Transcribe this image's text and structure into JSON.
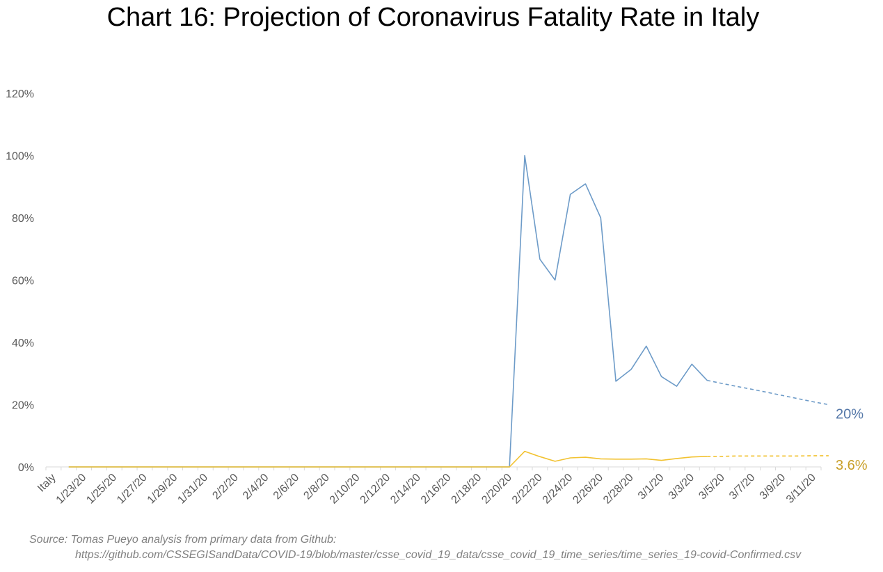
{
  "chart_data": {
    "type": "line",
    "title": "Chart 16: Projection of Coronavirus Fatality Rate in Italy",
    "x_start_label": "Italy",
    "x": [
      "Italy",
      "1/22/20",
      "1/23/20",
      "1/24/20",
      "1/25/20",
      "1/26/20",
      "1/27/20",
      "1/28/20",
      "1/29/20",
      "1/30/20",
      "1/31/20",
      "2/1/20",
      "2/2/20",
      "2/3/20",
      "2/4/20",
      "2/5/20",
      "2/6/20",
      "2/7/20",
      "2/8/20",
      "2/9/20",
      "2/10/20",
      "2/11/20",
      "2/12/20",
      "2/13/20",
      "2/14/20",
      "2/15/20",
      "2/16/20",
      "2/17/20",
      "2/18/20",
      "2/19/20",
      "2/20/20",
      "2/21/20",
      "2/22/20",
      "2/23/20",
      "2/24/20",
      "2/25/20",
      "2/26/20",
      "2/27/20",
      "2/28/20",
      "2/29/20",
      "3/1/20",
      "3/2/20",
      "3/3/20",
      "3/4/20",
      "3/5/20",
      "3/6/20",
      "3/7/20",
      "3/8/20",
      "3/9/20",
      "3/10/20",
      "3/11/20"
    ],
    "tick_labels": [
      "Italy",
      "1/23/20",
      "1/25/20",
      "1/27/20",
      "1/29/20",
      "1/31/20",
      "2/2/20",
      "2/4/20",
      "2/6/20",
      "2/8/20",
      "2/10/20",
      "2/12/20",
      "2/14/20",
      "2/16/20",
      "2/18/20",
      "2/20/20",
      "2/22/20",
      "2/24/20",
      "2/26/20",
      "2/28/20",
      "3/1/20",
      "3/3/20",
      "3/5/20",
      "3/7/20",
      "3/9/20",
      "3/11/20"
    ],
    "ylim": [
      0,
      120
    ],
    "y_ticks": [
      "0%",
      "20%",
      "40%",
      "60%",
      "80%",
      "100%",
      "120%"
    ],
    "grid": false,
    "series": [
      {
        "color": "#6d9bc8",
        "end_label": "20%",
        "end_label_color": "#5578a8",
        "actual": {
          "start": "1/22/20",
          "values": [
            0,
            0,
            0,
            0,
            0,
            0,
            0,
            0,
            0,
            0,
            0,
            0,
            0,
            0,
            0,
            0,
            0,
            0,
            0,
            0,
            0,
            0,
            0,
            0,
            0,
            0,
            0,
            0,
            0,
            0,
            100,
            66.7,
            60,
            87.5,
            90.9,
            80,
            27.5,
            31.3,
            38.8,
            29,
            25.9,
            33,
            27.8
          ]
        },
        "projection": {
          "start": "3/4/20",
          "values": [
            27.8,
            26.8,
            25.8,
            24.9,
            23.9,
            22.9,
            21.9,
            20.9,
            20
          ]
        }
      },
      {
        "color": "#f2c230",
        "end_label": "3.6%",
        "end_label_color": "#c9a02a",
        "actual": {
          "start": "1/22/20",
          "values": [
            0,
            0,
            0,
            0,
            0,
            0,
            0,
            0,
            0,
            0,
            0,
            0,
            0,
            0,
            0,
            0,
            0,
            0,
            0,
            0,
            0,
            0,
            0,
            0,
            0,
            0,
            0,
            0,
            0,
            0,
            5,
            3.3,
            1.8,
            2.9,
            3.1,
            2.6,
            2.5,
            2.5,
            2.6,
            2.1,
            2.7,
            3.2,
            3.4
          ]
        },
        "projection": {
          "start": "3/4/20",
          "values": [
            3.4,
            3.4,
            3.5,
            3.5,
            3.5,
            3.5,
            3.5,
            3.6,
            3.6
          ]
        }
      }
    ]
  },
  "source": {
    "line1": "Source: Tomas Pueyo analysis from primary data from Github:",
    "line2": "https://github.com/CSSEGISandData/COVID-19/blob/master/csse_covid_19_data/csse_covid_19_time_series/time_series_19-covid-Confirmed.csv"
  }
}
